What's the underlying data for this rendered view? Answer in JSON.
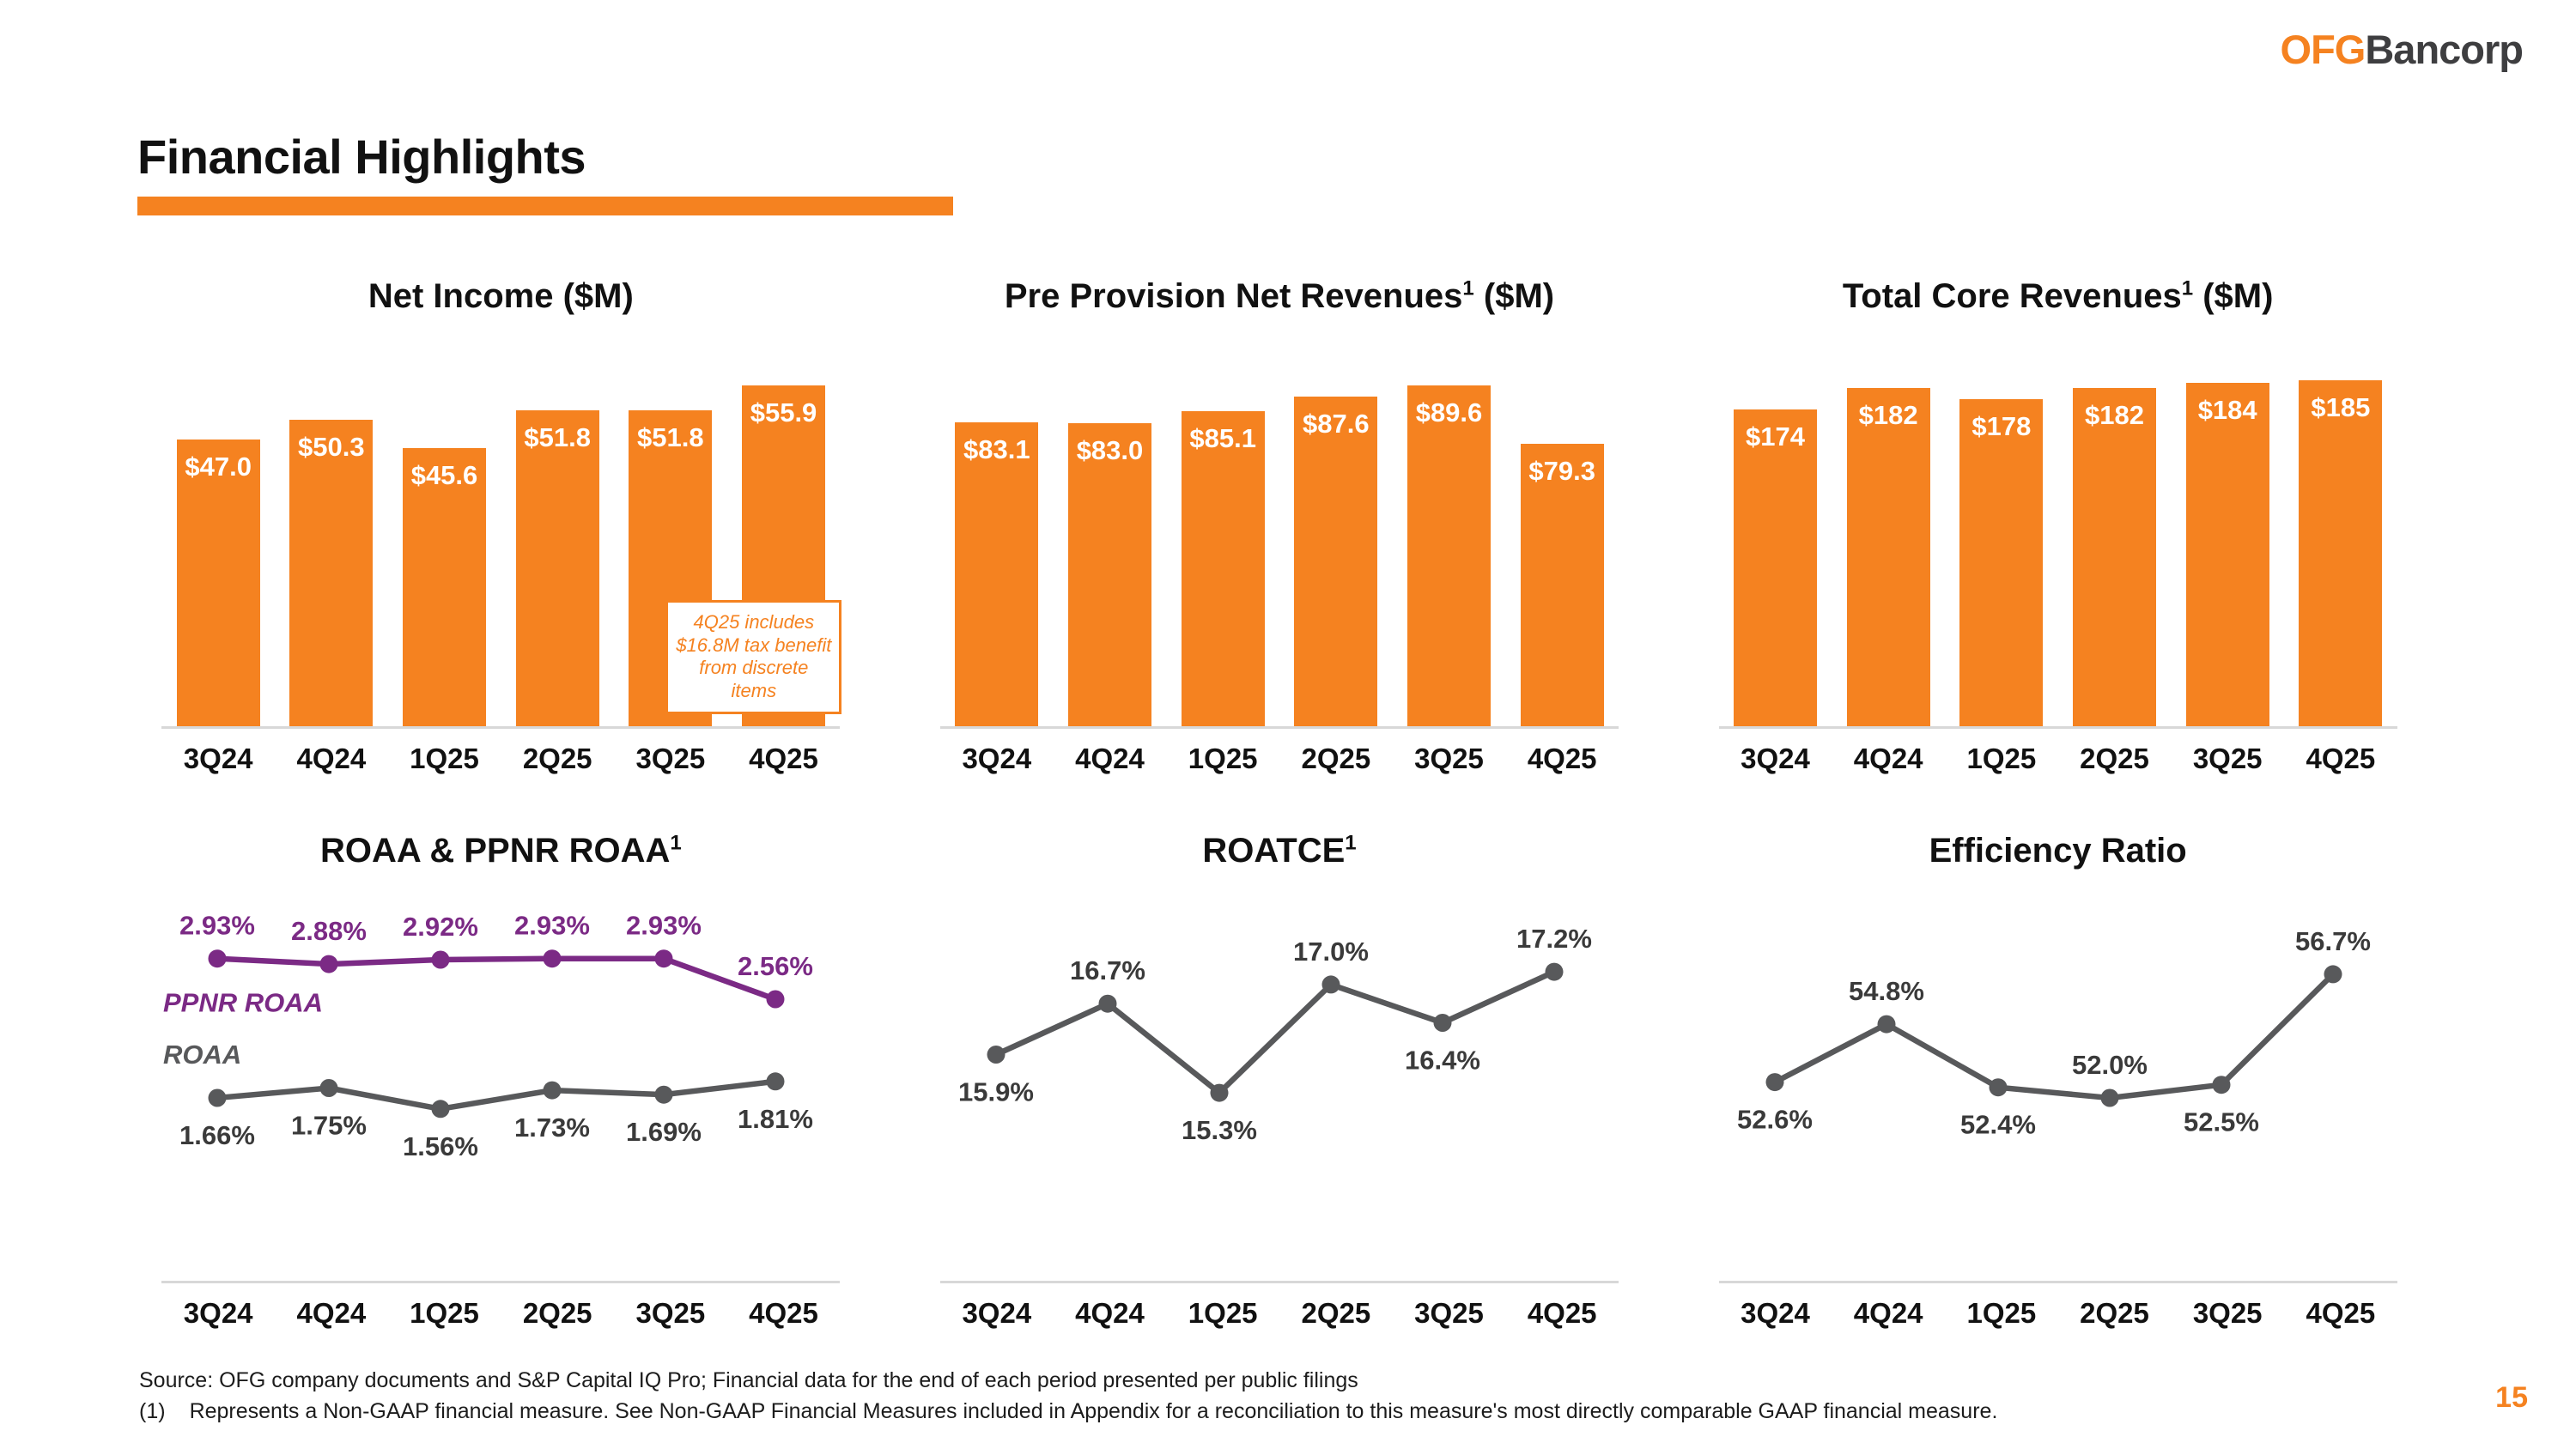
{
  "logo": {
    "part1": "OFG",
    "part2": "Bancorp"
  },
  "title": "Financial Highlights",
  "page_number": "15",
  "footer": {
    "line1": "Source: OFG company documents and S&P Capital IQ Pro; Financial data for the end of each period presented per public filings",
    "note_marker": "(1)",
    "note_text": "Represents a Non-GAAP financial measure. See Non-GAAP Financial Measures included in Appendix for a reconciliation to this measure's most directly comparable GAAP financial measure."
  },
  "colors": {
    "orange": "#F58220",
    "purple": "#7B2A85",
    "line_gray": "#58595B",
    "text_dark": "#3A3A3A",
    "axis": "#D8D8D8"
  },
  "chart_data": [
    {
      "id": "net-income",
      "type": "bar",
      "title": "Net Income ($M)",
      "title_sup": "",
      "title_suffix": "",
      "categories": [
        "3Q24",
        "4Q24",
        "1Q25",
        "2Q25",
        "3Q25",
        "4Q25"
      ],
      "values": [
        47.0,
        50.3,
        45.6,
        51.8,
        51.8,
        55.9
      ],
      "labels": [
        "$47.0",
        "$50.3",
        "$45.6",
        "$51.8",
        "$51.8",
        "$55.9"
      ],
      "ylim": [
        0,
        62
      ],
      "annotation": "4Q25 includes $16.8M tax benefit from discrete items"
    },
    {
      "id": "pre-provision-net-revenues",
      "type": "bar",
      "title": "Pre Provision Net Revenues",
      "title_sup": "1",
      "title_suffix": " ($M)",
      "categories": [
        "3Q24",
        "4Q24",
        "1Q25",
        "2Q25",
        "3Q25",
        "4Q25"
      ],
      "values": [
        83.1,
        83.0,
        85.1,
        87.6,
        89.6,
        79.3
      ],
      "labels": [
        "$83.1",
        "$83.0",
        "$85.1",
        "$87.6",
        "$89.6",
        "$79.3"
      ],
      "ylim": [
        30,
        96
      ],
      "annotation": ""
    },
    {
      "id": "total-core-revenues",
      "type": "bar",
      "title": "Total Core Revenues",
      "title_sup": "1",
      "title_suffix": " ($M)",
      "categories": [
        "3Q24",
        "4Q24",
        "1Q25",
        "2Q25",
        "3Q25",
        "4Q25"
      ],
      "values": [
        174,
        182,
        178,
        182,
        184,
        185
      ],
      "labels": [
        "$174",
        "$182",
        "$178",
        "$182",
        "$184",
        "$185"
      ],
      "ylim": [
        55,
        197
      ],
      "annotation": ""
    },
    {
      "id": "roaa-ppnr-roaa",
      "type": "line",
      "title": "ROAA & PPNR ROAA",
      "title_sup": "1",
      "title_suffix": "",
      "categories": [
        "3Q24",
        "4Q24",
        "1Q25",
        "2Q25",
        "3Q25",
        "4Q25"
      ],
      "ylim": [
        1.3,
        3.1
      ],
      "series": [
        {
          "name": "PPNR ROAA",
          "color_key": "purple",
          "values": [
            2.93,
            2.88,
            2.92,
            2.93,
            2.93,
            2.56
          ],
          "labels": [
            "2.93%",
            "2.88%",
            "2.92%",
            "2.93%",
            "2.93%",
            "2.56%"
          ],
          "label_pos": [
            "above",
            "above",
            "above",
            "above",
            "above",
            "above"
          ]
        },
        {
          "name": "ROAA",
          "color_key": "gray",
          "values": [
            1.66,
            1.75,
            1.56,
            1.73,
            1.69,
            1.81
          ],
          "labels": [
            "1.66%",
            "1.75%",
            "1.56%",
            "1.73%",
            "1.69%",
            "1.81%"
          ],
          "label_pos": [
            "below",
            "below",
            "below",
            "below",
            "below",
            "below"
          ]
        }
      ]
    },
    {
      "id": "roatce",
      "type": "line",
      "title": "ROATCE",
      "title_sup": "1",
      "title_suffix": "",
      "categories": [
        "3Q24",
        "4Q24",
        "1Q25",
        "2Q25",
        "3Q25",
        "4Q25"
      ],
      "ylim": [
        14.6,
        17.7
      ],
      "series": [
        {
          "name": "",
          "color_key": "gray",
          "values": [
            15.9,
            16.7,
            15.3,
            17.0,
            16.4,
            17.2
          ],
          "labels": [
            "15.9%",
            "16.7%",
            "15.3%",
            "17.0%",
            "16.4%",
            "17.2%"
          ],
          "label_pos": [
            "below",
            "above",
            "below",
            "above",
            "below",
            "above"
          ]
        }
      ]
    },
    {
      "id": "efficiency-ratio",
      "type": "line",
      "title": "Efficiency Ratio",
      "title_sup": "",
      "title_suffix": "",
      "categories": [
        "3Q24",
        "4Q24",
        "1Q25",
        "2Q25",
        "3Q25",
        "4Q25"
      ],
      "ylim": [
        50.5,
        58
      ],
      "series": [
        {
          "name": "",
          "color_key": "gray",
          "values": [
            52.6,
            54.8,
            52.4,
            52.0,
            52.5,
            56.7
          ],
          "labels": [
            "52.6%",
            "54.8%",
            "52.4%",
            "52.0%",
            "52.5%",
            "56.7%"
          ],
          "label_pos": [
            "below",
            "above",
            "below",
            "above",
            "below",
            "above"
          ]
        }
      ]
    }
  ]
}
